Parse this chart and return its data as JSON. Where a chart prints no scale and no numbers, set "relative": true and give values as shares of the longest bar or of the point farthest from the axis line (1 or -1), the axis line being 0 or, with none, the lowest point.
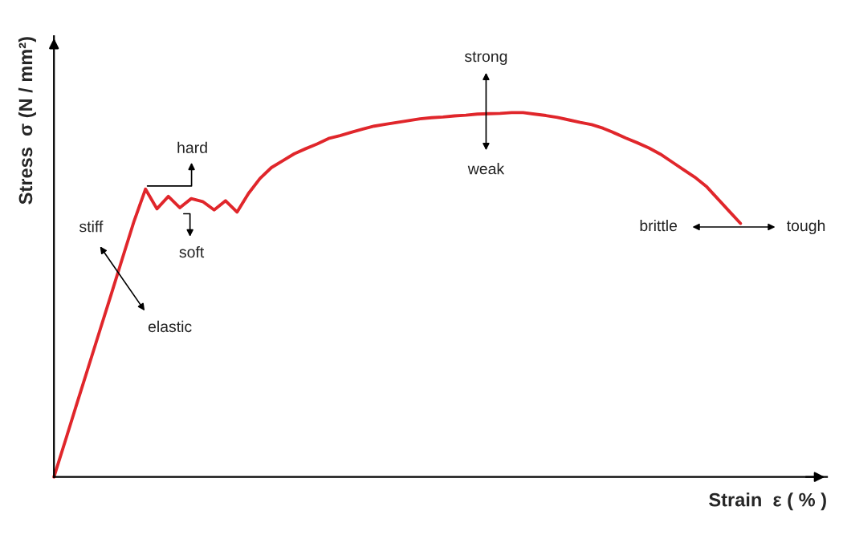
{
  "chart_data": {
    "type": "line",
    "relative": true,
    "xlabel": "Strain  ε ( % )",
    "ylabel": "Stress  σ (N / mm²)",
    "legend": false,
    "categories": [
      null,
      null,
      null,
      null,
      null,
      null,
      null,
      null,
      null,
      null,
      null,
      null,
      null,
      null,
      null,
      null,
      null,
      null,
      null,
      null,
      null,
      null,
      null,
      null,
      null,
      null,
      null,
      null,
      null,
      null,
      null,
      null,
      null,
      null,
      null,
      null,
      null,
      null,
      null,
      null,
      null,
      null,
      null,
      null,
      null,
      null,
      null,
      null,
      null,
      null,
      null,
      null,
      null,
      null,
      null,
      null,
      null,
      null,
      null,
      null,
      null
    ],
    "series": [
      {
        "color": "#e0262b",
        "values": [
          0,
          0.1,
          0.201,
          0.301,
          0.401,
          0.501,
          0.602,
          0.702,
          0.79,
          0.736,
          0.77,
          0.739,
          0.764,
          0.756,
          0.733,
          0.758,
          0.727,
          0.778,
          0.819,
          0.849,
          0.868,
          0.887,
          0.901,
          0.914,
          0.929,
          0.937,
          0.946,
          0.955,
          0.963,
          0.968,
          0.973,
          0.978,
          0.983,
          0.986,
          0.988,
          0.991,
          0.993,
          0.996,
          0.997,
          0.998,
          1.0,
          1.0,
          0.996,
          0.992,
          0.987,
          0.98,
          0.973,
          0.967,
          0.957,
          0.944,
          0.93,
          0.917,
          0.903,
          0.886,
          0.865,
          0.844,
          0.823,
          0.798,
          0.764,
          0.73,
          0.696
        ]
      }
    ],
    "annotations": [
      "strong",
      "weak",
      "hard",
      "soft",
      "stiff",
      "elastic",
      "brittle",
      "tough"
    ]
  }
}
